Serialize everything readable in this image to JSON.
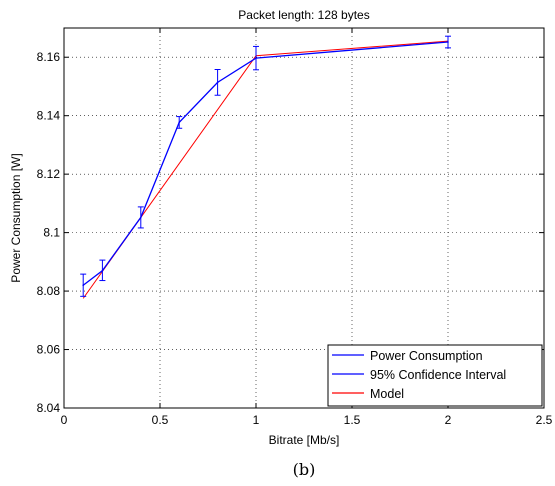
{
  "chart_data": {
    "type": "line",
    "title": "Packet length: 128 bytes",
    "xlabel": "Bitrate [Mb/s]",
    "ylabel": "Power Consumption [W]",
    "xlim": [
      0,
      2.5
    ],
    "ylim": [
      8.04,
      8.17
    ],
    "xticks": [
      0,
      0.5,
      1,
      1.5,
      2,
      2.5
    ],
    "xtick_labels": [
      "0",
      "0.5",
      "1",
      "1.5",
      "2",
      "2.5"
    ],
    "yticks": [
      8.04,
      8.06,
      8.08,
      8.1,
      8.12,
      8.14,
      8.16
    ],
    "ytick_labels": [
      "8.04",
      "8.06",
      "8.08",
      "8.1",
      "8.12",
      "8.14",
      "8.16"
    ],
    "grid": true,
    "legend_position": "bottom-right",
    "series": [
      {
        "name": "Power Consumption",
        "color": "#0000ff",
        "x": [
          0.1,
          0.2,
          0.4,
          0.6,
          0.8,
          1,
          2
        ],
        "y": [
          8.082,
          8.087,
          8.1052,
          8.1377,
          8.1514,
          8.1597,
          8.1652
        ]
      },
      {
        "name": "95% Confidence Interval",
        "color": "#0000ff",
        "x": [
          0.1,
          0.2,
          0.4,
          0.6,
          0.8,
          1,
          2
        ],
        "lower": [
          8.0782,
          8.0836,
          8.1016,
          8.1357,
          8.147,
          8.1557,
          8.1632
        ],
        "upper": [
          8.0858,
          8.0906,
          8.1088,
          8.1397,
          8.1558,
          8.1637,
          8.1672
        ]
      },
      {
        "name": "Model",
        "color": "#ff0000",
        "x": [
          0.1,
          1,
          2
        ],
        "y": [
          8.0775,
          8.1605,
          8.1655
        ]
      }
    ]
  },
  "caption": "(b)"
}
